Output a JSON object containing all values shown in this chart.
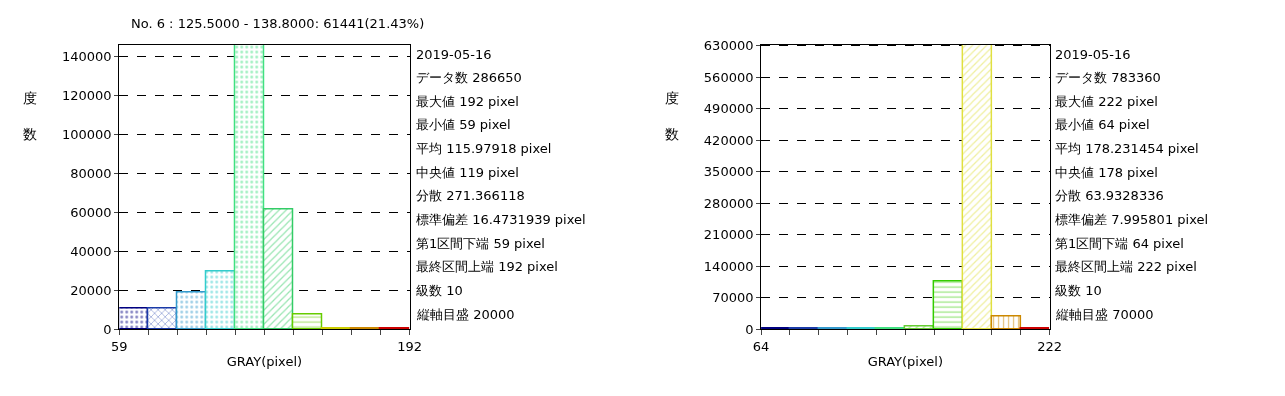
{
  "chart_data": [
    {
      "type": "histogram",
      "title": "No. 6 : 125.5000 - 138.8000: 61441(21.43%)",
      "xlabel": "GRAY(pixel)",
      "ylabel": "度数",
      "bins": [
        59,
        72.3,
        85.6,
        98.9,
        112.2,
        125.5,
        138.8,
        152.1,
        165.4,
        178.7,
        192
      ],
      "values": [
        10400,
        10400,
        18900,
        29800,
        146300,
        61441,
        7500,
        400,
        150,
        150
      ],
      "colors": [
        "#000080",
        "#1a3aa8",
        "#3399cc",
        "#33cccc",
        "#40e080",
        "#33cc66",
        "#66cc00",
        "#cccc00",
        "#cc8800",
        "#cc0000"
      ],
      "xlim": [
        59,
        192
      ],
      "xticks": [
        59,
        {
          "value": 72.3,
          "label": null
        },
        {
          "value": 85.6,
          "label": null
        },
        {
          "value": 98.9,
          "label": null
        },
        {
          "value": 112.2,
          "label": null
        },
        {
          "value": 125.5,
          "label": null
        },
        {
          "value": 138.8,
          "label": null
        },
        {
          "value": 152.1,
          "label": null
        },
        {
          "value": 165.4,
          "label": null
        },
        {
          "value": 178.7,
          "label": null
        },
        192
      ],
      "ylim": [
        0,
        146300
      ],
      "yticks": [
        0,
        20000,
        40000,
        60000,
        80000,
        100000,
        120000,
        140000
      ],
      "grid": "y",
      "line_style": "dashed",
      "annotations": [
        "2019-05-16",
        "データ数 286650",
        "最大値 192 pixel",
        "最小値 59 pixel",
        "平均 115.97918 pixel",
        "中央値 119 pixel",
        "分散 271.366118",
        "標準偏差 16.4731939 pixel",
        "第1区間下端 59 pixel",
        "最終区間上端 192 pixel",
        "級数 10",
        "縦軸目盛 20000"
      ]
    },
    {
      "type": "histogram",
      "xlabel": "GRAY(pixel)",
      "ylabel": "度数",
      "bins": [
        64,
        79.8,
        95.6,
        111.4,
        127.2,
        143,
        158.8,
        174.6,
        190.4,
        206.2,
        222
      ],
      "values": [
        300,
        300,
        300,
        300,
        300,
        5900,
        106000,
        633000,
        28000,
        300
      ],
      "colors": [
        "#000080",
        "#1a3aa8",
        "#3399cc",
        "#33cccc",
        "#40e080",
        "#66cc33",
        "#33cc00",
        "#e0e040",
        "#cc8800",
        "#cc0000"
      ],
      "xlim": [
        64,
        222
      ],
      "xticks": [
        64,
        {
          "value": 79.8,
          "label": null
        },
        {
          "value": 95.6,
          "label": null
        },
        {
          "value": 111.4,
          "label": null
        },
        {
          "value": 127.2,
          "label": null
        },
        {
          "value": 143,
          "label": null
        },
        {
          "value": 158.8,
          "label": null
        },
        {
          "value": 174.6,
          "label": null
        },
        {
          "value": 190.4,
          "label": null
        },
        {
          "value": 206.2,
          "label": null
        },
        222
      ],
      "ylim": [
        0,
        633000
      ],
      "yticks": [
        0,
        70000,
        140000,
        210000,
        280000,
        350000,
        420000,
        490000,
        560000,
        630000
      ],
      "grid": "y",
      "line_style": "dashed",
      "annotations": [
        "2019-05-16",
        "データ数 783360",
        "最大値 222 pixel",
        "最小値 64 pixel",
        "平均 178.231454 pixel",
        "中央値 178 pixel",
        "分散 63.9328336",
        "標準偏差 7.995801 pixel",
        "第1区間下端 64 pixel",
        "最終区間上端 222 pixel",
        "級数 10",
        "縦軸目盛 70000"
      ]
    }
  ]
}
